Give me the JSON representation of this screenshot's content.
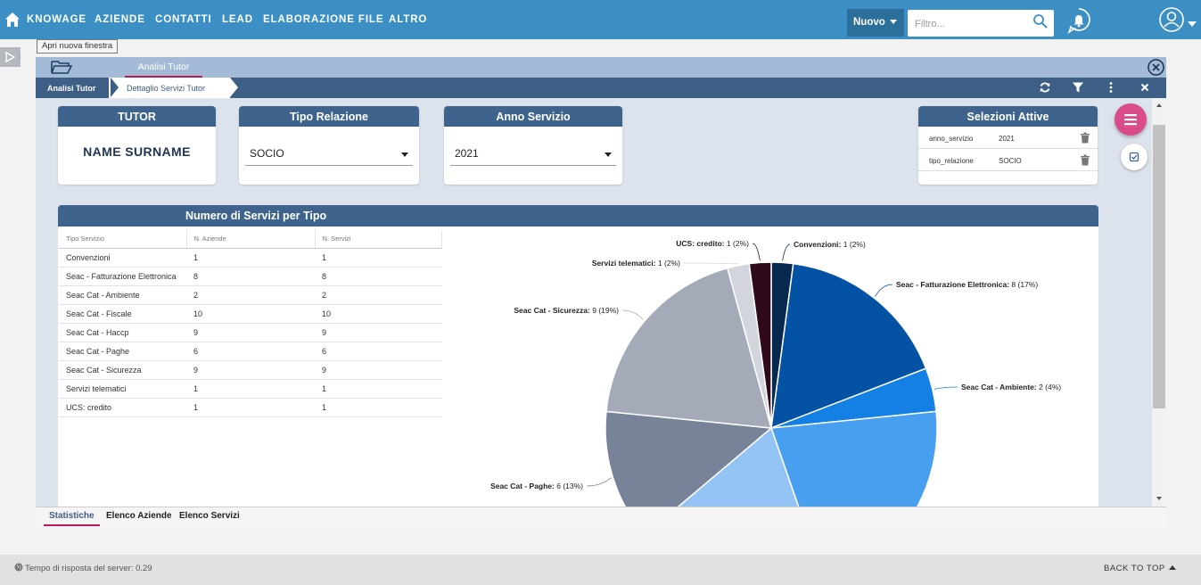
{
  "nav": {
    "items": [
      "KNOWAGE",
      "AZIENDE",
      "CONTATTI",
      "LEAD",
      "ELABORAZIONE FILE",
      "ALTRO"
    ],
    "new_button": "Nuovo",
    "filter_placeholder": "Filtro..."
  },
  "tooltip": "Apri nuova finestra",
  "document": {
    "tab": "Analisi Tutor",
    "breadcrumbs": [
      "Analisi Tutor",
      "Dettaglio Servizi Tutor"
    ]
  },
  "filters": {
    "tutor_title": "TUTOR",
    "tutor_name": "NAME SURNAME",
    "tipo_relazione_title": "Tipo Relazione",
    "tipo_relazione_value": "SOCIO",
    "anno_servizio_title": "Anno Servizio",
    "anno_servizio_value": "2021"
  },
  "selections": {
    "title": "Selezioni Attive",
    "rows": [
      {
        "key": "anno_servizio",
        "value": "2021"
      },
      {
        "key": "tipo_relazione",
        "value": "SOCIO"
      }
    ]
  },
  "widget": {
    "title": "Numero di Servizi per Tipo",
    "columns": [
      "Tipo Servizio",
      "N. Aziende",
      "N. Servizi"
    ],
    "rows": [
      [
        "Convenzioni",
        "1",
        "1"
      ],
      [
        "Seac - Fatturazione Elettronica",
        "8",
        "8"
      ],
      [
        "Seac Cat - Ambiente",
        "2",
        "2"
      ],
      [
        "Seac Cat - Fiscale",
        "10",
        "10"
      ],
      [
        "Seac Cat - Haccp",
        "9",
        "9"
      ],
      [
        "Seac Cat - Paghe",
        "6",
        "6"
      ],
      [
        "Seac Cat - Sicurezza",
        "9",
        "9"
      ],
      [
        "Servizi telematici",
        "1",
        "1"
      ],
      [
        "UCS: credito",
        "1",
        "1"
      ]
    ]
  },
  "chart_data": {
    "type": "pie",
    "categories": [
      "Convenzioni",
      "Seac - Fatturazione Elettronica",
      "Seac Cat - Ambiente",
      "Seac Cat - Fiscale",
      "Seac Cat - Haccp",
      "Seac Cat - Paghe",
      "Seac Cat - Sicurezza",
      "Servizi telematici",
      "UCS: credito"
    ],
    "values": [
      1,
      8,
      2,
      10,
      9,
      6,
      9,
      1,
      1
    ],
    "colors": [
      "#07294f",
      "#0452a3",
      "#1580e3",
      "#489ff0",
      "#93c4f5",
      "#78839a",
      "#a4aab8",
      "#d2d5db",
      "#2f0a1a"
    ],
    "labels_visible": [
      {
        "name": "Convenzioni",
        "text": "1 (2%)"
      },
      {
        "name": "Seac - Fatturazione Elettronica",
        "text": "8 (17%)"
      },
      {
        "name": "Seac Cat - Ambiente",
        "text": "2 (4%)"
      },
      {
        "name": "Seac Cat - Paghe",
        "text": "6 (13%)"
      },
      {
        "name": "Seac Cat - Sicurezza",
        "text": "9 (19%)"
      },
      {
        "name": "Servizi telematici",
        "text": "1 (2%)"
      },
      {
        "name": "UCS: credito",
        "text": "1 (2%)"
      }
    ]
  },
  "bottom_tabs": [
    "Statistiche",
    "Elenco Aziende",
    "Elenco Servizi"
  ],
  "footer": {
    "response_time": "Tempo di risposta del server: 0.29",
    "back_to_top": "BACK TO TOP"
  }
}
